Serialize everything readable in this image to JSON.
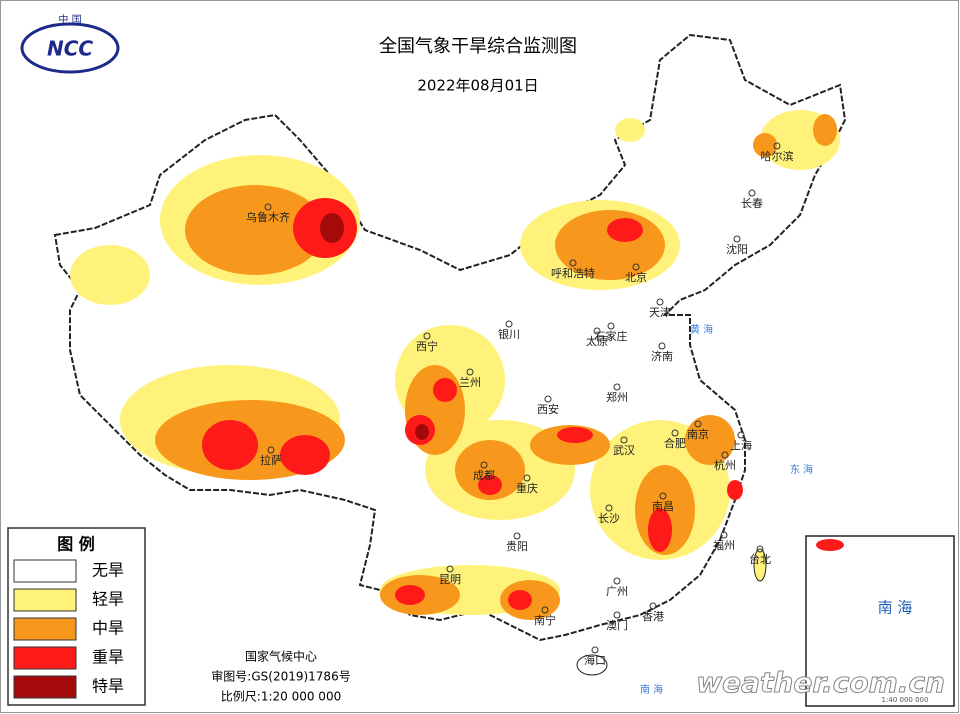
{
  "header": {
    "title": "全国气象干旱综合监测图",
    "date": "2022年08月01日",
    "logo_top": "中 国",
    "logo_text": "NCC"
  },
  "legend": {
    "title": "图 例",
    "items": [
      {
        "label": "无旱",
        "color": "#ffffff"
      },
      {
        "label": "轻旱",
        "color": "#fff27a"
      },
      {
        "label": "中旱",
        "color": "#f7981d"
      },
      {
        "label": "重旱",
        "color": "#ff1a1a"
      },
      {
        "label": "特旱",
        "color": "#a50a0a"
      }
    ]
  },
  "cities": [
    "乌鲁木齐",
    "呼和浩特",
    "北京",
    "天津",
    "石家庄",
    "太原",
    "银川",
    "西宁",
    "兰州",
    "济南",
    "郑州",
    "西安",
    "合肥",
    "南京",
    "上海",
    "杭州",
    "武汉",
    "成都",
    "重庆",
    "拉萨",
    "长沙",
    "南昌",
    "贵阳",
    "昆明",
    "福州",
    "台北",
    "广州",
    "南宁",
    "香港",
    "澳门",
    "海口",
    "哈尔滨",
    "长春",
    "沈阳"
  ],
  "seas": [
    "黄 海",
    "东 海",
    "南 海"
  ],
  "credits": [
    "国家气候中心",
    "审图号:GS(2019)1786号",
    "比例尺:1:20 000 000"
  ],
  "inset": {
    "label": "南 海",
    "scale": "1:40 000 000"
  },
  "watermark": "weather.com.cn"
}
